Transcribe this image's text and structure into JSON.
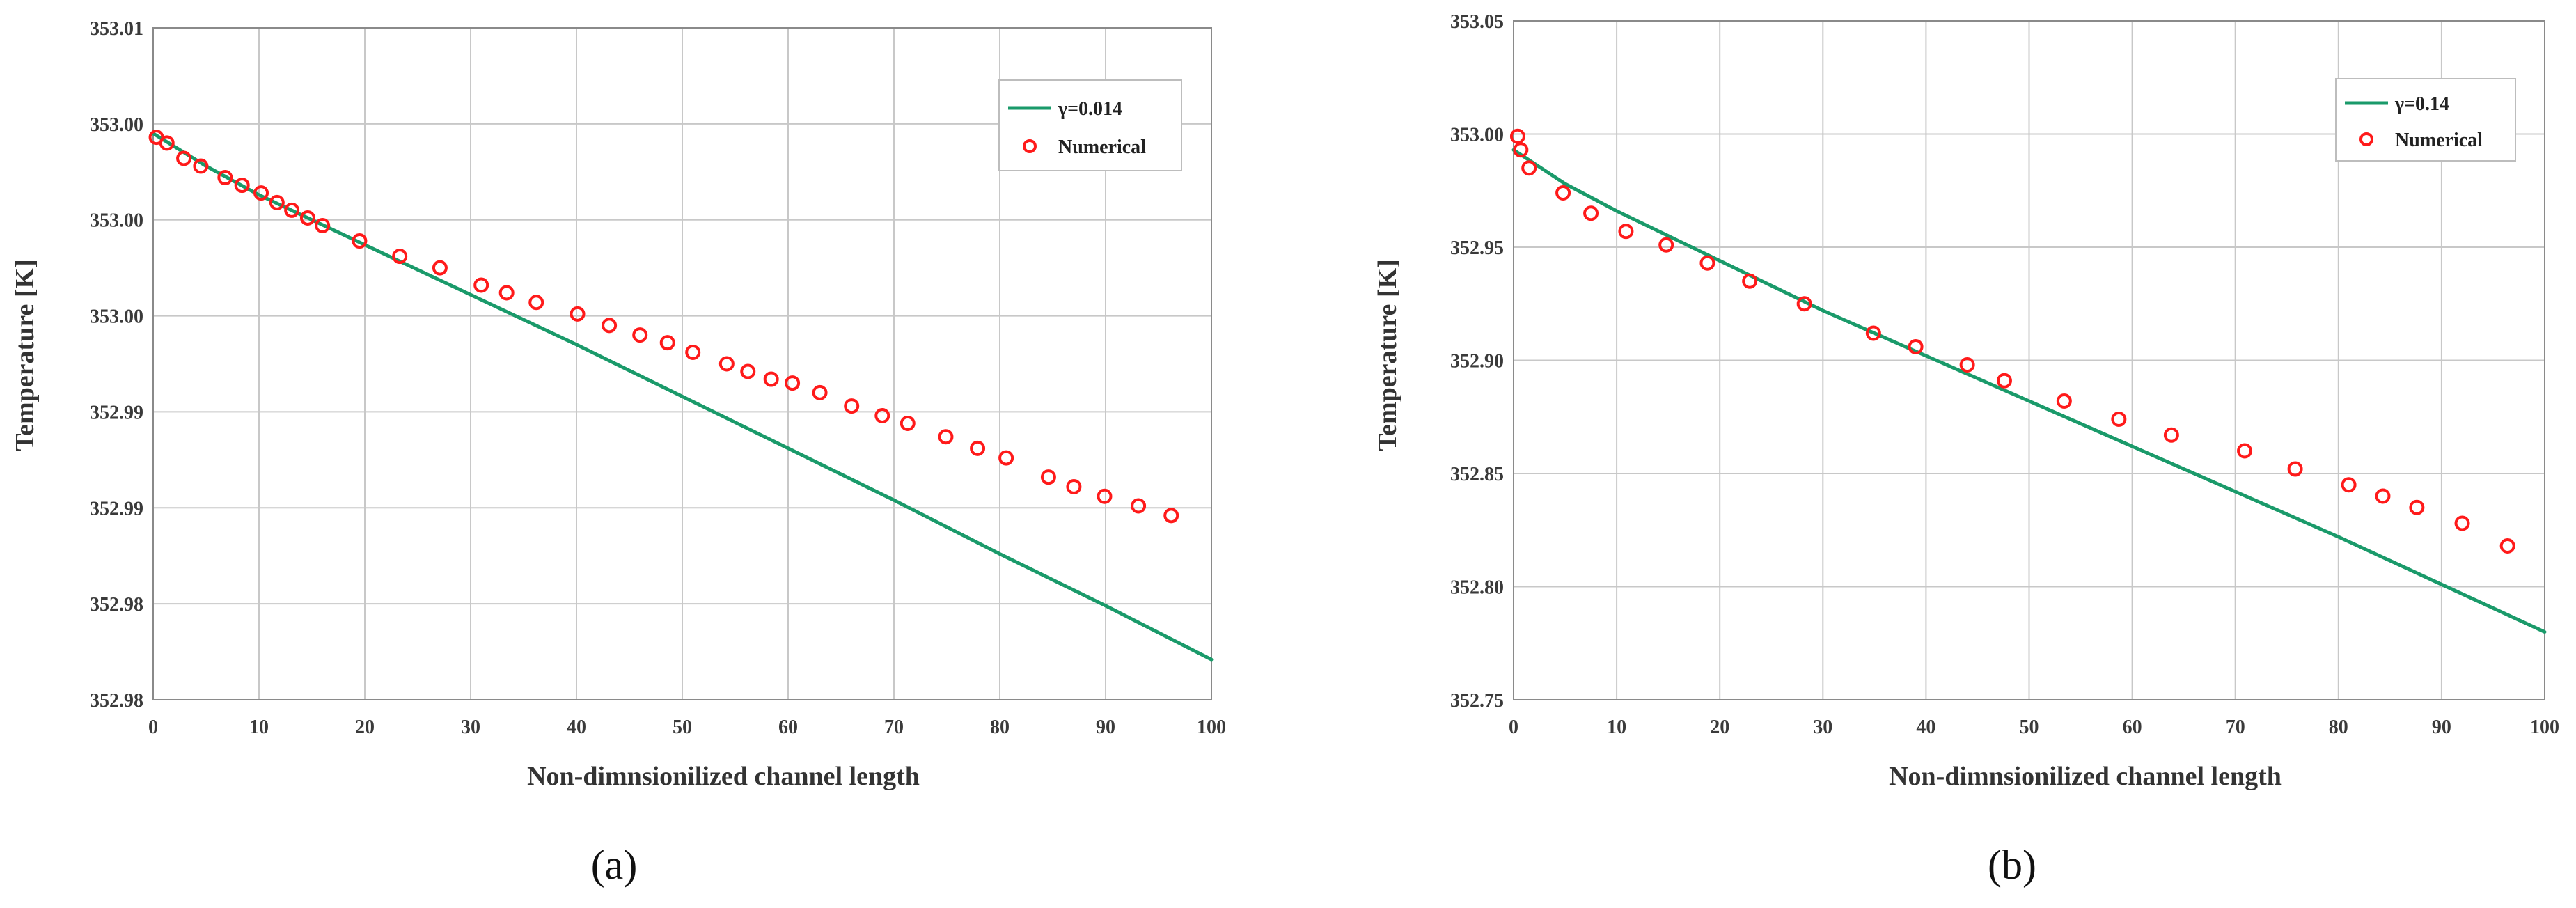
{
  "colors": {
    "fit_line": "#1a9a6a",
    "numerical_marker": "#ff1a1a",
    "grid": "#c8c8c8",
    "axis": "#8a8a8a"
  },
  "chart_data": [
    {
      "type": "line",
      "caption": "(a)",
      "xlabel": "Non-dimnsionilized channel length",
      "ylabel": "Temperature [K]",
      "xlim": [
        0,
        100
      ],
      "ylim": [
        352.975,
        353.01
      ],
      "xticks": [
        0,
        10,
        20,
        30,
        40,
        50,
        60,
        70,
        80,
        90,
        100
      ],
      "yticks": [
        352.975,
        352.98,
        352.985,
        352.99,
        352.995,
        353.0,
        353.005,
        353.01
      ],
      "ytick_labels": [
        "352.98",
        "352.98",
        "352.99",
        "352.99",
        "353.00",
        "353.00",
        "353.00",
        "353.01"
      ],
      "grid": true,
      "legend_position": "top-right",
      "series": [
        {
          "name": "γ=0.014",
          "kind": "line",
          "x": [
            0,
            5,
            10,
            15,
            20,
            30,
            40,
            50,
            60,
            70,
            80,
            90,
            100
          ],
          "y": [
            353.0045,
            353.0028,
            353.0013,
            353.0,
            352.9987,
            352.9961,
            352.9935,
            352.9908,
            352.9881,
            352.9854,
            352.9826,
            352.9799,
            352.9771
          ]
        },
        {
          "name": "Numerical",
          "kind": "scatter",
          "x": [
            0.3,
            1.3,
            2.9,
            4.5,
            6.8,
            8.4,
            10.2,
            11.7,
            13.1,
            14.6,
            16.0,
            19.5,
            23.3,
            27.1,
            31.0,
            33.4,
            36.2,
            40.1,
            43.1,
            46.0,
            48.6,
            51.0,
            54.2,
            56.2,
            58.4,
            60.4,
            63.0,
            66.0,
            68.9,
            71.3,
            74.9,
            77.9,
            80.6,
            84.6,
            87.0,
            89.9,
            93.1,
            96.2
          ],
          "y": [
            353.0043,
            353.004,
            353.0032,
            353.0028,
            353.0022,
            353.0018,
            353.0014,
            353.0009,
            353.0005,
            353.0001,
            352.9997,
            352.9989,
            352.9981,
            352.9975,
            352.9966,
            352.9962,
            352.9957,
            352.9951,
            352.9945,
            352.994,
            352.9936,
            352.9931,
            352.9925,
            352.9921,
            352.9917,
            352.9915,
            352.991,
            352.9903,
            352.9898,
            352.9894,
            352.9887,
            352.9881,
            352.9876,
            352.9866,
            352.9861,
            352.9856,
            352.9851,
            352.9846
          ]
        }
      ]
    },
    {
      "type": "line",
      "caption": "(b)",
      "xlabel": "Non-dimnsionilized channel length",
      "ylabel": "Temperature [K]",
      "xlim": [
        0,
        100
      ],
      "ylim": [
        352.75,
        353.05
      ],
      "xticks": [
        0,
        10,
        20,
        30,
        40,
        50,
        60,
        70,
        80,
        90,
        100
      ],
      "yticks": [
        352.75,
        352.8,
        352.85,
        352.9,
        352.95,
        353.0,
        353.05
      ],
      "ytick_labels": [
        "352.75",
        "352.80",
        "352.85",
        "352.90",
        "352.95",
        "353.00",
        "353.05"
      ],
      "grid": true,
      "legend_position": "top-right",
      "series": [
        {
          "name": "γ=0.14",
          "kind": "line",
          "x": [
            0,
            2,
            5,
            10,
            15,
            20,
            30,
            40,
            50,
            60,
            70,
            80,
            90,
            100
          ],
          "y": [
            352.993,
            352.987,
            352.978,
            352.966,
            352.955,
            352.944,
            352.922,
            352.902,
            352.882,
            352.862,
            352.842,
            352.822,
            352.801,
            352.78
          ]
        },
        {
          "name": "Numerical",
          "kind": "scatter",
          "x": [
            0.4,
            0.7,
            1.5,
            4.8,
            7.5,
            10.9,
            14.8,
            18.8,
            22.9,
            28.2,
            34.9,
            39.0,
            44.0,
            47.6,
            53.4,
            58.7,
            63.8,
            70.9,
            75.8,
            81.0,
            84.3,
            87.6,
            92.0,
            96.4
          ],
          "y": [
            352.999,
            352.993,
            352.985,
            352.974,
            352.965,
            352.957,
            352.951,
            352.943,
            352.935,
            352.925,
            352.912,
            352.906,
            352.898,
            352.891,
            352.882,
            352.874,
            352.867,
            352.86,
            352.852,
            352.845,
            352.84,
            352.835,
            352.828,
            352.818
          ]
        }
      ]
    }
  ]
}
